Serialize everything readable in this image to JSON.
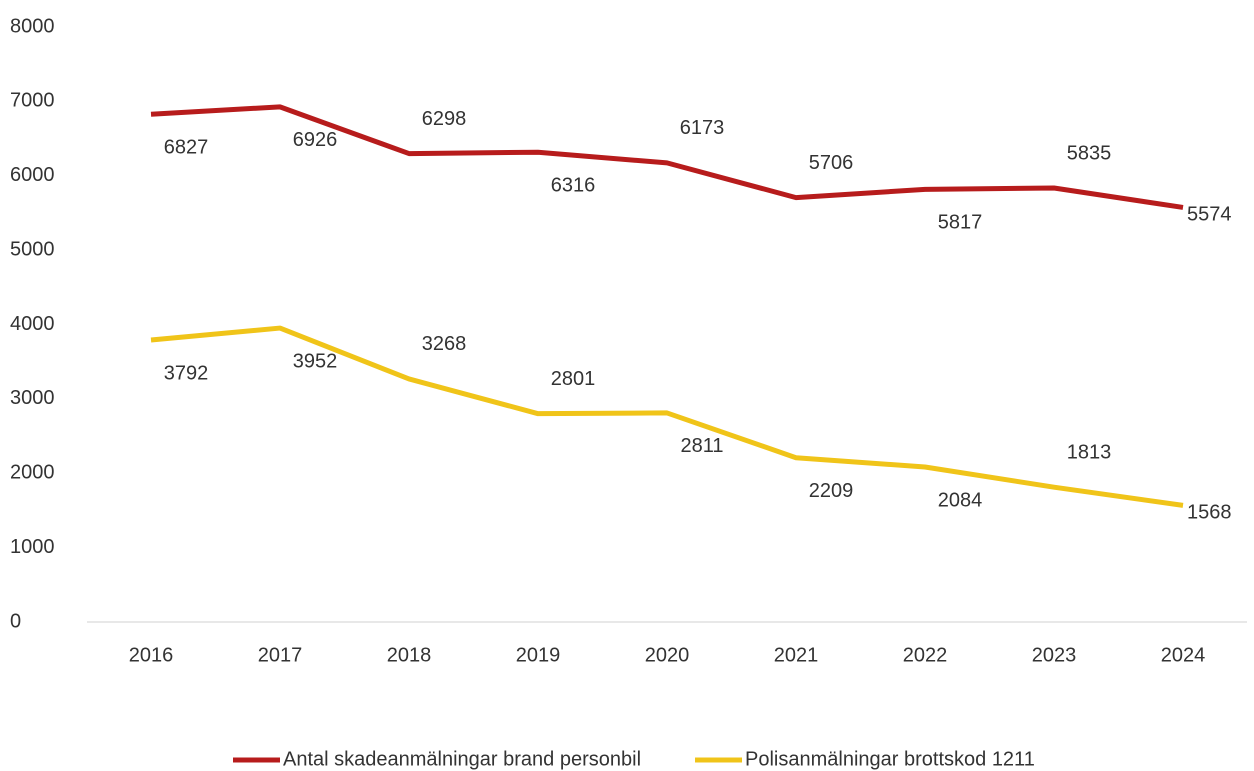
{
  "chart_data": {
    "type": "line",
    "categories": [
      "2016",
      "2017",
      "2018",
      "2019",
      "2020",
      "2021",
      "2022",
      "2023",
      "2024"
    ],
    "series": [
      {
        "name": "Antal skadeanmälningar brand personbil",
        "color": "#b71c1c",
        "values": [
          6827,
          6926,
          6298,
          6316,
          6173,
          5706,
          5817,
          5835,
          5574
        ]
      },
      {
        "name": "Polisanmälningar brottskod 1211",
        "color": "#f0c419",
        "values": [
          3792,
          3952,
          3268,
          2801,
          2811,
          2209,
          2084,
          1813,
          1568
        ]
      }
    ],
    "ylim": [
      0,
      8000
    ],
    "yticks": [
      0,
      1000,
      2000,
      3000,
      4000,
      5000,
      6000,
      7000,
      8000
    ],
    "grid": false,
    "legend": "bottom"
  }
}
